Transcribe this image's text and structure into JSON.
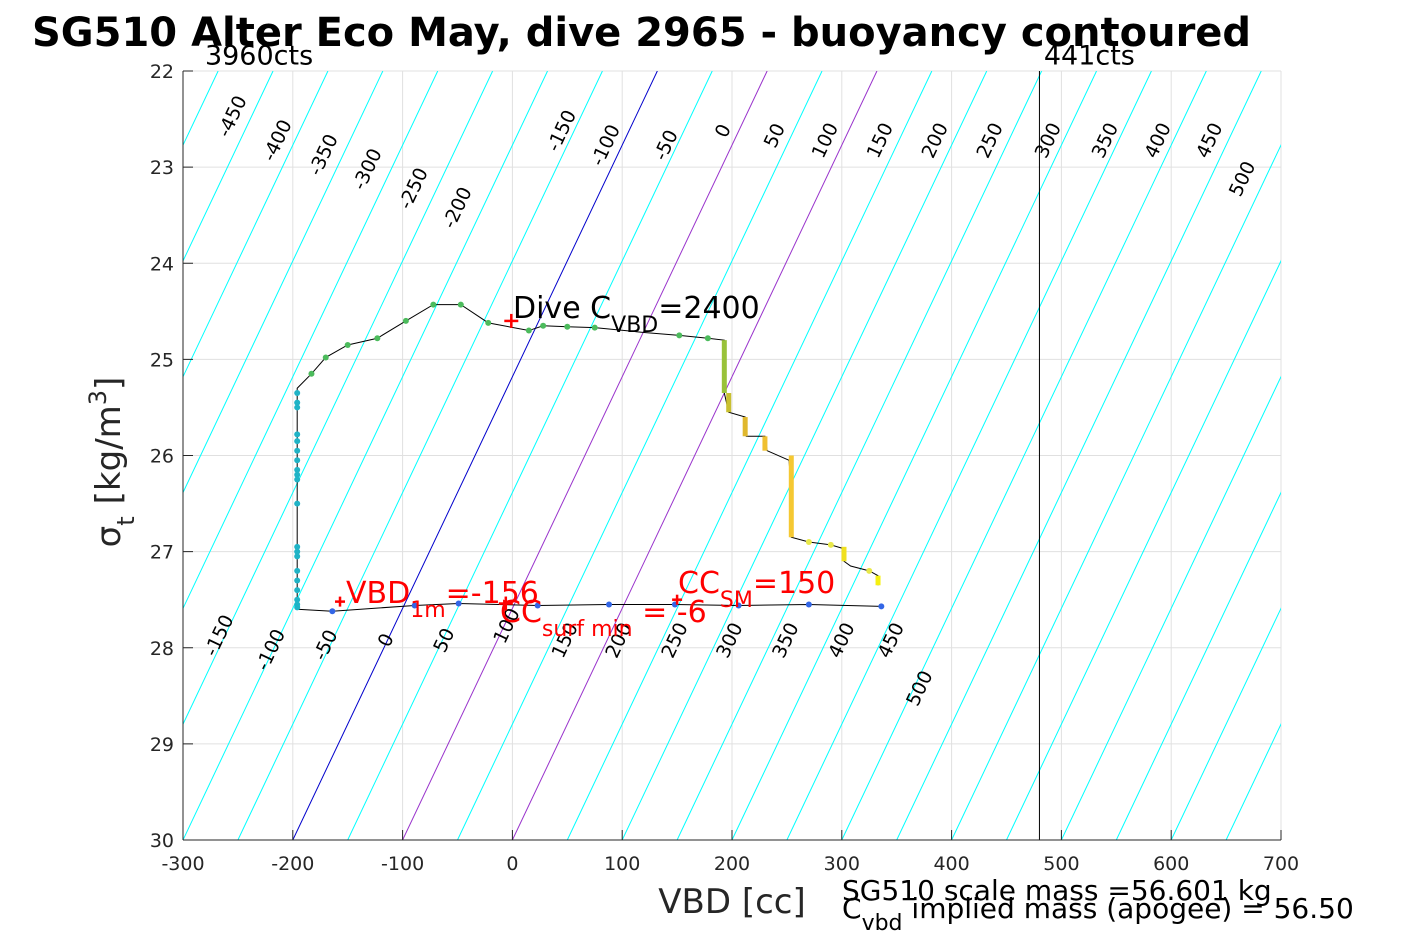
{
  "chart_data": {
    "type": "scatter",
    "title": "SG510 Alter Eco May, dive 2965 - buoyancy contoured",
    "xlabel": "VBD [cc]",
    "ylabel_sym": "σ",
    "ylabel_sub": "t",
    "ylabel_unit": "[kg/m",
    "ylabel_sup": "3",
    "ylabel_close": "]",
    "xlim": [
      -300,
      700
    ],
    "ylim": [
      22,
      30
    ],
    "y_reversed": true,
    "grid": true,
    "x_ticks": [
      -300,
      -200,
      -100,
      0,
      100,
      200,
      300,
      400,
      500,
      600,
      700
    ],
    "y_ticks": [
      22,
      23,
      24,
      25,
      26,
      27,
      28,
      29,
      30
    ],
    "colors": {
      "contour": "#00ffff",
      "zero_contour": "#0000cc",
      "cc_contour": "#9933cc",
      "trace": "#000000",
      "annotation": "#ff0000",
      "grid": "#e0e0e0"
    },
    "contour_slope_cc_per_sigma": 41.5,
    "contour_levels": [
      -450,
      -400,
      -350,
      -300,
      -250,
      -200,
      -150,
      -100,
      -50,
      0,
      50,
      100,
      150,
      200,
      250,
      300,
      350,
      400,
      450,
      500
    ],
    "contour_highlight": {
      "zero": 0,
      "purple": [
        100,
        200
      ]
    },
    "top_labels": [
      {
        "text": "-450",
        "x": -250,
        "y": 22.5
      },
      {
        "text": "-400",
        "x": -209,
        "y": 22.75
      },
      {
        "text": "-350",
        "x": -167,
        "y": 22.9
      },
      {
        "text": "-300",
        "x": -127,
        "y": 23.05
      },
      {
        "text": "-250",
        "x": -85,
        "y": 23.25
      },
      {
        "text": "-200",
        "x": -45,
        "y": 23.45
      },
      {
        "text": "-150",
        "x": 50,
        "y": 22.65
      },
      {
        "text": "-100",
        "x": 90,
        "y": 22.8
      },
      {
        "text": "-50",
        "x": 145,
        "y": 22.8
      },
      {
        "text": "0",
        "x": 197,
        "y": 22.65
      },
      {
        "text": "50",
        "x": 244,
        "y": 22.7
      },
      {
        "text": "100",
        "x": 290,
        "y": 22.75
      },
      {
        "text": "150",
        "x": 340,
        "y": 22.75
      },
      {
        "text": "200",
        "x": 390,
        "y": 22.75
      },
      {
        "text": "250",
        "x": 440,
        "y": 22.75
      },
      {
        "text": "300",
        "x": 493,
        "y": 22.75
      },
      {
        "text": "350",
        "x": 545,
        "y": 22.75
      },
      {
        "text": "400",
        "x": 593,
        "y": 22.75
      },
      {
        "text": "450",
        "x": 640,
        "y": 22.75
      },
      {
        "text": "500",
        "x": 670,
        "y": 23.15
      }
    ],
    "bottom_labels": [
      {
        "text": "-150",
        "x": -262,
        "y": 27.9
      },
      {
        "text": "-100",
        "x": -215,
        "y": 28.05
      },
      {
        "text": "-50",
        "x": -165,
        "y": 28.0
      },
      {
        "text": "0",
        "x": -110,
        "y": 27.95
      },
      {
        "text": "50",
        "x": -57,
        "y": 27.95
      },
      {
        "text": "100",
        "x": 0,
        "y": 27.8
      },
      {
        "text": "150",
        "x": 53,
        "y": 27.95
      },
      {
        "text": "200",
        "x": 102,
        "y": 27.95
      },
      {
        "text": "250",
        "x": 153,
        "y": 27.95
      },
      {
        "text": "300",
        "x": 203,
        "y": 27.95
      },
      {
        "text": "350",
        "x": 254,
        "y": 27.95
      },
      {
        "text": "400",
        "x": 305,
        "y": 27.95
      },
      {
        "text": "450",
        "x": 350,
        "y": 27.95
      },
      {
        "text": "500",
        "x": 376,
        "y": 28.45
      }
    ],
    "vlines": [
      {
        "x": 480,
        "label": "441cts",
        "label_x": 484,
        "label_y": 21.93
      },
      {
        "x": -300,
        "label": "3960cts",
        "label_x": -280,
        "label_y": 21.93
      }
    ],
    "trace_series": [
      {
        "name": "dive",
        "points": [
          [
            -196,
            27.6
          ],
          [
            -196,
            27.4
          ],
          [
            -196,
            27.2
          ],
          [
            -196,
            27.0
          ],
          [
            -196,
            26.8
          ],
          [
            -196,
            26.5
          ],
          [
            -196,
            26.2
          ],
          [
            -196,
            26.0
          ],
          [
            -196,
            25.9
          ],
          [
            -196,
            25.75
          ],
          [
            -196,
            25.5
          ],
          [
            -196,
            25.4
          ],
          [
            -196,
            25.3
          ],
          [
            -183,
            25.15
          ],
          [
            -170,
            24.98
          ],
          [
            -150,
            24.85
          ],
          [
            -123,
            24.78
          ],
          [
            -97,
            24.6
          ],
          [
            -72,
            24.43
          ],
          [
            -47,
            24.43
          ],
          [
            -22,
            24.62
          ],
          [
            15,
            24.7
          ],
          [
            28,
            24.65
          ],
          [
            50,
            24.66
          ],
          [
            75,
            24.67
          ],
          [
            120,
            24.72
          ],
          [
            152,
            24.75
          ],
          [
            178,
            24.78
          ],
          [
            193,
            24.8
          ],
          [
            193,
            25.0
          ],
          [
            193,
            25.2
          ],
          [
            193,
            25.35
          ],
          [
            197,
            25.55
          ],
          [
            212,
            25.6
          ],
          [
            213,
            25.8
          ],
          [
            230,
            25.8
          ],
          [
            232,
            25.95
          ],
          [
            252,
            26.05
          ],
          [
            254,
            26.4
          ],
          [
            254,
            26.85
          ],
          [
            270,
            26.9
          ],
          [
            290,
            26.93
          ],
          [
            302,
            26.97
          ],
          [
            302,
            27.1
          ],
          [
            308,
            27.15
          ],
          [
            325,
            27.2
          ],
          [
            333,
            27.25
          ],
          [
            333,
            27.35
          ]
        ]
      },
      {
        "name": "climb",
        "points": [
          [
            336,
            27.57
          ],
          [
            270,
            27.55
          ],
          [
            206,
            27.56
          ],
          [
            148,
            27.55
          ],
          [
            88,
            27.55
          ],
          [
            23,
            27.56
          ],
          [
            -49,
            27.54
          ],
          [
            -89,
            27.56
          ],
          [
            -164,
            27.62
          ],
          [
            -196,
            27.6
          ]
        ]
      }
    ],
    "thick_segments": [
      {
        "color": "#99c23a",
        "points": [
          [
            193,
            24.8
          ],
          [
            193,
            25.35
          ]
        ]
      },
      {
        "color": "#c9c030",
        "points": [
          [
            197,
            25.35
          ],
          [
            197,
            25.55
          ]
        ]
      },
      {
        "color": "#e0b82e",
        "points": [
          [
            212,
            25.6
          ],
          [
            212,
            25.8
          ]
        ]
      },
      {
        "color": "#f0c030",
        "points": [
          [
            230,
            25.8
          ],
          [
            230,
            25.95
          ]
        ]
      },
      {
        "color": "#f5c832",
        "points": [
          [
            254,
            26.0
          ],
          [
            254,
            26.85
          ]
        ]
      },
      {
        "color": "#f0e020",
        "points": [
          [
            302,
            26.95
          ],
          [
            302,
            27.1
          ]
        ]
      },
      {
        "color": "#f5f010",
        "points": [
          [
            333,
            27.25
          ],
          [
            333,
            27.35
          ]
        ]
      }
    ],
    "markers": {
      "green": [
        [
          -183,
          25.15
        ],
        [
          -170,
          24.98
        ],
        [
          -150,
          24.85
        ],
        [
          -123,
          24.78
        ],
        [
          -97,
          24.6
        ],
        [
          -72,
          24.43
        ],
        [
          -47,
          24.43
        ],
        [
          -22,
          24.62
        ],
        [
          15,
          24.7
        ],
        [
          28,
          24.65
        ],
        [
          50,
          24.66
        ],
        [
          75,
          24.67
        ],
        [
          152,
          24.75
        ],
        [
          178,
          24.78
        ]
      ],
      "teal": [
        [
          -196,
          25.35
        ],
        [
          -196,
          25.45
        ],
        [
          -196,
          25.5
        ],
        [
          -196,
          25.78
        ],
        [
          -196,
          25.85
        ],
        [
          -196,
          25.95
        ],
        [
          -196,
          26.05
        ],
        [
          -196,
          26.15
        ],
        [
          -196,
          26.2
        ],
        [
          -196,
          26.25
        ],
        [
          -196,
          26.5
        ],
        [
          -196,
          26.95
        ],
        [
          -196,
          27.0
        ],
        [
          -196,
          27.05
        ],
        [
          -196,
          27.2
        ],
        [
          -196,
          27.3
        ],
        [
          -196,
          27.4
        ],
        [
          -196,
          27.5
        ],
        [
          -196,
          27.55
        ],
        [
          -196,
          27.58
        ]
      ],
      "blue": [
        [
          336,
          27.57
        ],
        [
          270,
          27.55
        ],
        [
          206,
          27.56
        ],
        [
          148,
          27.55
        ],
        [
          88,
          27.55
        ],
        [
          23,
          27.56
        ],
        [
          -49,
          27.54
        ],
        [
          -89,
          27.56
        ],
        [
          -164,
          27.62
        ]
      ],
      "yellow": [
        [
          270,
          26.9
        ],
        [
          290,
          26.93
        ],
        [
          325,
          27.2
        ]
      ]
    },
    "plus_markers": [
      {
        "x": -1,
        "y": 24.6,
        "color": "#ff0000",
        "size": "large"
      },
      {
        "x": -157,
        "y": 27.52,
        "color": "#ff0000",
        "size": "small"
      },
      {
        "x": -6,
        "y": 27.54,
        "color": "#ff0000",
        "size": "large"
      },
      {
        "x": 150,
        "y": 27.5,
        "color": "#ff0000",
        "size": "small"
      }
    ],
    "annotations": {
      "dive_cvbd": {
        "pre": "Dive C",
        "sub": "VBD",
        "post": "=2400",
        "x": 0,
        "y": 24.6,
        "color": "#000000"
      },
      "vbd_1m": {
        "pre": "VBD",
        "sub": "1m",
        "post": "=-156",
        "x": -152,
        "y": 27.5,
        "color": "#ff0000"
      },
      "cc_surf_min": {
        "pre": "CC",
        "sub": "surf min",
        "post": " = -6",
        "x": -12,
        "y": 27.75,
        "color": "#ff0000"
      },
      "cc_sm": {
        "pre": "CC",
        "sub": "SM",
        "post": "=150",
        "x": 150,
        "y": 27.4,
        "color": "#ff0000"
      }
    },
    "footer": {
      "scale_mass": "SG510 scale mass =56.601 kg",
      "implied_pre": "C",
      "implied_sub": "vbd",
      "implied_post": " implied mass (apogee) = 56.50"
    }
  }
}
